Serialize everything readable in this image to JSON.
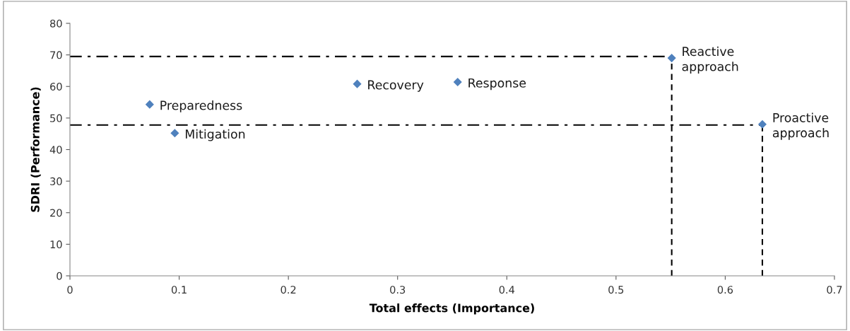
{
  "chart_data": {
    "type": "scatter",
    "xlabel": "Total effects (Importance)",
    "ylabel": "SDRI (Performance)",
    "xlim": [
      0,
      0.7
    ],
    "xticks": [
      0,
      0.1,
      0.2,
      0.3,
      0.4,
      0.5,
      0.6,
      0.7
    ],
    "ylim": [
      0,
      80
    ],
    "yticks": [
      0,
      10,
      20,
      30,
      40,
      50,
      60,
      70,
      80
    ],
    "grid": false,
    "legend": false,
    "marker": "diamond",
    "series": [
      {
        "color": "#4f81bd",
        "x": [
          0.073,
          0.096,
          0.263,
          0.355,
          0.551,
          0.634
        ],
        "values": [
          54.3,
          45.2,
          60.8,
          61.4,
          69,
          48
        ]
      },
      {
        "type": "line",
        "color": "#000000",
        "line_style": "dashdot",
        "marker": "none",
        "x": [
          0,
          0.551
        ],
        "values": [
          69.5,
          69.5
        ]
      },
      {
        "type": "line",
        "color": "#000000",
        "line_style": "dashdot",
        "marker": "none",
        "x": [
          0,
          0.634
        ],
        "values": [
          47.8,
          47.8
        ]
      },
      {
        "type": "line",
        "color": "#000000",
        "line_style": "dashed",
        "marker": "none",
        "x": [
          0.551,
          0.551
        ],
        "values": [
          0,
          69
        ]
      },
      {
        "type": "line",
        "color": "#000000",
        "line_style": "dashed",
        "marker": "none",
        "x": [
          0.634,
          0.634
        ],
        "values": [
          0,
          48
        ]
      }
    ],
    "annotations": [
      {
        "text": "Preparedness",
        "x": 0.073,
        "y": 54.3
      },
      {
        "text": "Mitigation",
        "x": 0.096,
        "y": 45.2
      },
      {
        "text": "Recovery",
        "x": 0.263,
        "y": 60.8
      },
      {
        "text": "Response",
        "x": 0.355,
        "y": 61.4
      },
      {
        "text": "Reactive\napproach",
        "x": 0.551,
        "y": 69
      },
      {
        "text": "Proactive\napproach",
        "x": 0.634,
        "y": 48
      }
    ]
  }
}
